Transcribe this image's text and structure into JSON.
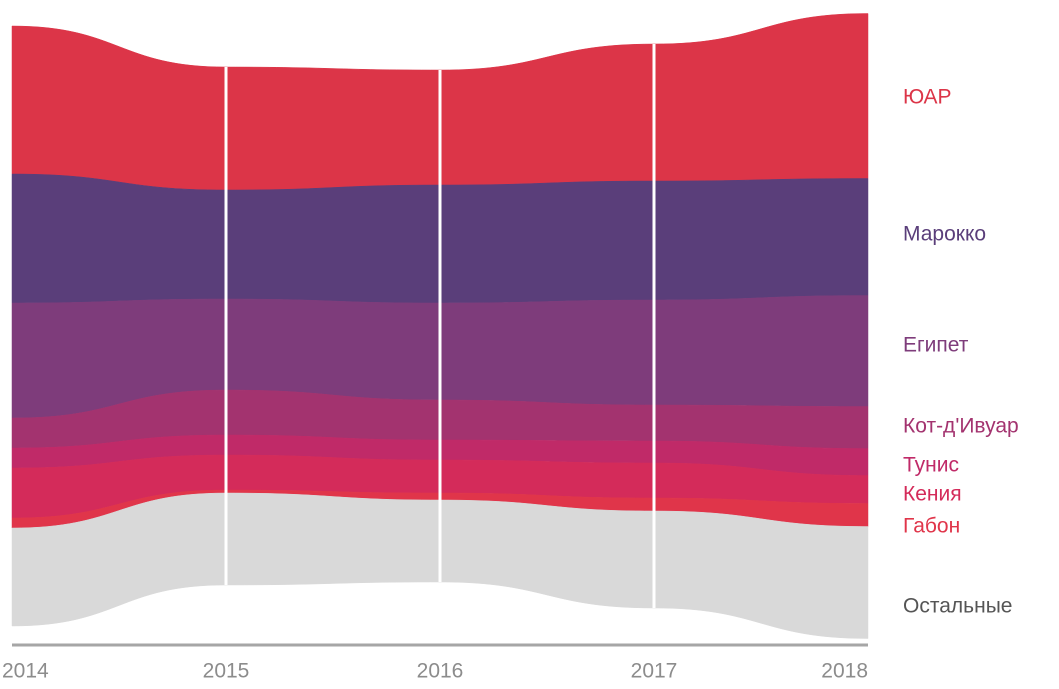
{
  "chart_data": {
    "type": "streamgraph",
    "categories": [
      "2014",
      "2015",
      "2016",
      "2017",
      "2018"
    ],
    "series": [
      {
        "name": "ЮАР",
        "color": "#dc3548",
        "values": [
          148,
          123,
          115,
          137,
          165
        ]
      },
      {
        "name": "Марокко",
        "color": "#5a3e7a",
        "values": [
          129,
          109,
          118,
          119,
          117
        ]
      },
      {
        "name": "Египет",
        "color": "#7e3c7b",
        "values": [
          115,
          91,
          97,
          105,
          111
        ]
      },
      {
        "name": "Кот-д'Ивуар",
        "color": "#a3336f",
        "values": [
          30,
          45,
          40,
          36,
          42
        ]
      },
      {
        "name": "Тунис",
        "color": "#c02a68",
        "values": [
          20,
          20,
          20,
          22,
          27
        ]
      },
      {
        "name": "Кения",
        "color": "#d42b5a",
        "values": [
          50,
          35,
          33,
          35,
          28
        ]
      },
      {
        "name": "Габон",
        "color": "#e0354a",
        "values": [
          10,
          3,
          7,
          13,
          23
        ]
      },
      {
        "name": "Остальные",
        "color": "#d9d9d9",
        "values": [
          98,
          92,
          82,
          97,
          112
        ]
      }
    ]
  }
}
